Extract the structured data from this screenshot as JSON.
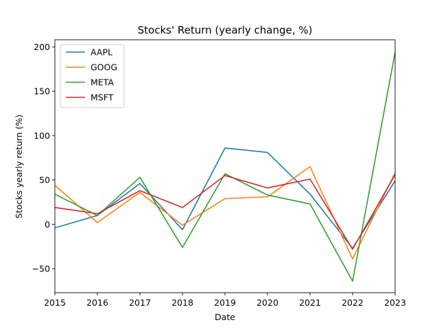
{
  "chart_data": {
    "type": "line",
    "title": "Stocks' Return (yearly change, %)",
    "xlabel": "Date",
    "ylabel": "Stocks yearly return (%)",
    "x": [
      2015,
      2016,
      2017,
      2018,
      2019,
      2020,
      2021,
      2022,
      2023
    ],
    "xticks": [
      "2015",
      "2016",
      "2017",
      "2018",
      "2019",
      "2020",
      "2021",
      "2022",
      "2023"
    ],
    "yticks": [
      "−50",
      "0",
      "50",
      "100",
      "150",
      "200"
    ],
    "ytick_values": [
      -50,
      0,
      50,
      100,
      150,
      200
    ],
    "xlim": [
      2015,
      2023
    ],
    "ylim": [
      -77,
      208
    ],
    "grid": false,
    "legend_position": "upper-left",
    "series": [
      {
        "name": "AAPL",
        "color": "#1f77b4",
        "values": [
          -4,
          10,
          46,
          -6,
          86,
          81,
          34,
          -27,
          49
        ]
      },
      {
        "name": "GOOG",
        "color": "#ff7f0e",
        "values": [
          44,
          2,
          36,
          -1,
          29,
          31,
          65,
          -39,
          58
        ]
      },
      {
        "name": "META",
        "color": "#2ca02c",
        "values": [
          34,
          10,
          53,
          -26,
          57,
          33,
          23,
          -64,
          194
        ]
      },
      {
        "name": "MSFT",
        "color": "#d62728",
        "values": [
          19,
          12,
          38,
          19,
          55,
          41,
          51,
          -28,
          56
        ]
      }
    ]
  }
}
